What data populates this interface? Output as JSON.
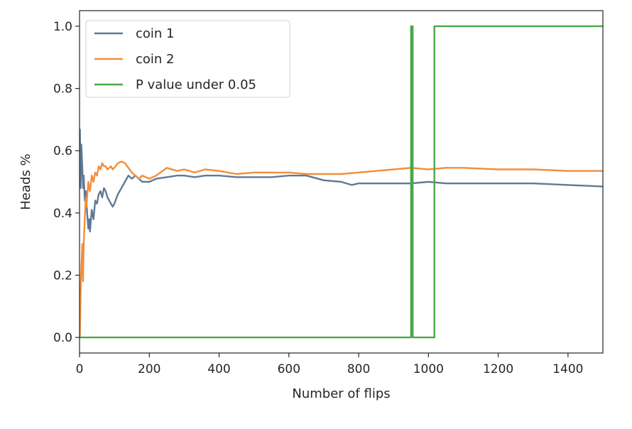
{
  "chart_data": {
    "type": "line",
    "xlabel": "Number of flips",
    "ylabel": "Heads %",
    "xlim": [
      0,
      1500
    ],
    "ylim": [
      -0.05,
      1.05
    ],
    "x_ticks": [
      0,
      200,
      400,
      600,
      800,
      1000,
      1200,
      1400
    ],
    "y_ticks": [
      0.0,
      0.2,
      0.4,
      0.6,
      0.8,
      1.0
    ],
    "x_tick_labels": [
      "0",
      "200",
      "400",
      "600",
      "800",
      "1000",
      "1200",
      "1400"
    ],
    "y_tick_labels": [
      "0.0",
      "0.2",
      "0.4",
      "0.6",
      "0.8",
      "1.0"
    ],
    "grid": false,
    "legend_position": "upper-left",
    "series": [
      {
        "name": "coin 1",
        "color": "#5f7a96",
        "points": [
          [
            1,
            0.67
          ],
          [
            3,
            0.48
          ],
          [
            5,
            0.62
          ],
          [
            8,
            0.55
          ],
          [
            10,
            0.48
          ],
          [
            12,
            0.52
          ],
          [
            15,
            0.44
          ],
          [
            18,
            0.47
          ],
          [
            20,
            0.43
          ],
          [
            25,
            0.35
          ],
          [
            28,
            0.38
          ],
          [
            30,
            0.34
          ],
          [
            35,
            0.41
          ],
          [
            40,
            0.38
          ],
          [
            45,
            0.44
          ],
          [
            50,
            0.43
          ],
          [
            55,
            0.46
          ],
          [
            60,
            0.47
          ],
          [
            65,
            0.45
          ],
          [
            70,
            0.48
          ],
          [
            75,
            0.47
          ],
          [
            80,
            0.45
          ],
          [
            85,
            0.44
          ],
          [
            90,
            0.43
          ],
          [
            95,
            0.42
          ],
          [
            100,
            0.43
          ],
          [
            110,
            0.46
          ],
          [
            120,
            0.48
          ],
          [
            130,
            0.5
          ],
          [
            140,
            0.52
          ],
          [
            150,
            0.51
          ],
          [
            160,
            0.52
          ],
          [
            170,
            0.51
          ],
          [
            180,
            0.5
          ],
          [
            200,
            0.5
          ],
          [
            220,
            0.51
          ],
          [
            250,
            0.515
          ],
          [
            280,
            0.52
          ],
          [
            300,
            0.52
          ],
          [
            330,
            0.515
          ],
          [
            360,
            0.52
          ],
          [
            400,
            0.52
          ],
          [
            450,
            0.515
          ],
          [
            500,
            0.515
          ],
          [
            550,
            0.515
          ],
          [
            600,
            0.52
          ],
          [
            650,
            0.52
          ],
          [
            700,
            0.505
          ],
          [
            750,
            0.5
          ],
          [
            780,
            0.49
          ],
          [
            800,
            0.495
          ],
          [
            850,
            0.495
          ],
          [
            900,
            0.495
          ],
          [
            950,
            0.495
          ],
          [
            1000,
            0.5
          ],
          [
            1050,
            0.495
          ],
          [
            1100,
            0.495
          ],
          [
            1200,
            0.495
          ],
          [
            1300,
            0.495
          ],
          [
            1400,
            0.49
          ],
          [
            1500,
            0.485
          ]
        ]
      },
      {
        "name": "coin 2",
        "color": "#f28e3a",
        "points": [
          [
            1,
            0.0
          ],
          [
            3,
            0.14
          ],
          [
            5,
            0.22
          ],
          [
            8,
            0.3
          ],
          [
            10,
            0.18
          ],
          [
            12,
            0.3
          ],
          [
            15,
            0.38
          ],
          [
            18,
            0.45
          ],
          [
            20,
            0.42
          ],
          [
            25,
            0.5
          ],
          [
            30,
            0.47
          ],
          [
            35,
            0.52
          ],
          [
            40,
            0.5
          ],
          [
            45,
            0.53
          ],
          [
            50,
            0.52
          ],
          [
            55,
            0.55
          ],
          [
            60,
            0.54
          ],
          [
            65,
            0.56
          ],
          [
            70,
            0.55
          ],
          [
            75,
            0.55
          ],
          [
            80,
            0.54
          ],
          [
            85,
            0.545
          ],
          [
            90,
            0.55
          ],
          [
            95,
            0.54
          ],
          [
            100,
            0.545
          ],
          [
            110,
            0.56
          ],
          [
            120,
            0.565
          ],
          [
            130,
            0.56
          ],
          [
            140,
            0.545
          ],
          [
            150,
            0.53
          ],
          [
            160,
            0.52
          ],
          [
            170,
            0.51
          ],
          [
            180,
            0.52
          ],
          [
            200,
            0.51
          ],
          [
            220,
            0.52
          ],
          [
            250,
            0.545
          ],
          [
            280,
            0.535
          ],
          [
            300,
            0.54
          ],
          [
            330,
            0.53
          ],
          [
            360,
            0.54
          ],
          [
            400,
            0.535
          ],
          [
            450,
            0.525
          ],
          [
            500,
            0.53
          ],
          [
            550,
            0.53
          ],
          [
            600,
            0.53
          ],
          [
            650,
            0.525
          ],
          [
            700,
            0.525
          ],
          [
            750,
            0.525
          ],
          [
            800,
            0.53
          ],
          [
            850,
            0.535
          ],
          [
            900,
            0.54
          ],
          [
            950,
            0.545
          ],
          [
            1000,
            0.54
          ],
          [
            1050,
            0.545
          ],
          [
            1100,
            0.545
          ],
          [
            1200,
            0.54
          ],
          [
            1300,
            0.54
          ],
          [
            1400,
            0.535
          ],
          [
            1500,
            0.535
          ]
        ]
      },
      {
        "name": "P value under 0.05",
        "color": "#4aa84a",
        "points": [
          [
            0,
            0.0
          ],
          [
            950,
            0.0
          ],
          [
            950,
            1.0
          ],
          [
            955,
            1.0
          ],
          [
            955,
            0.0
          ],
          [
            1017,
            0.0
          ],
          [
            1017,
            1.0
          ],
          [
            1500,
            1.0
          ]
        ]
      }
    ]
  }
}
